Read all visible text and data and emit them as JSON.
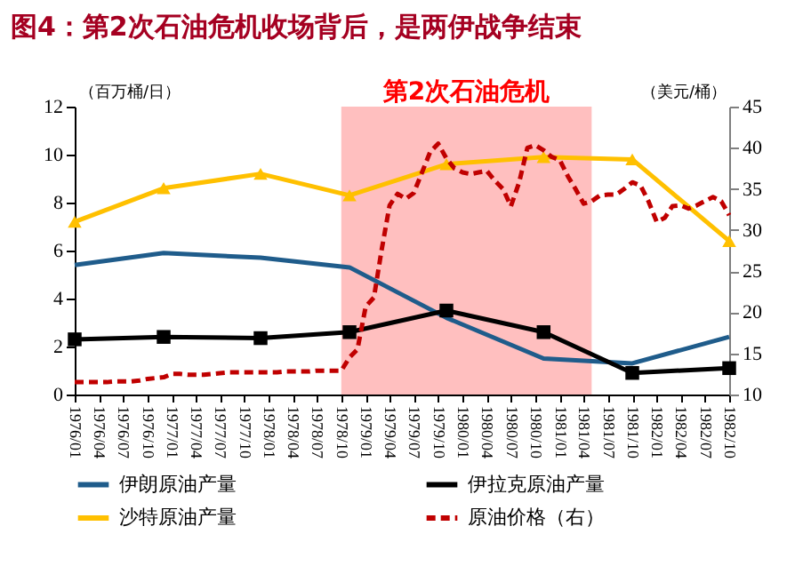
{
  "chart_data": {
    "type": "line",
    "title": "图4：第2次石油危机收场背后，是两伊战争结束",
    "ylabel": "（百万桶/日）",
    "y2label": "（美元/桶）",
    "xlim": [
      "1976-01",
      "1982-10"
    ],
    "xticks": [
      {
        "value": "1976-01",
        "label": "1976/01"
      },
      {
        "value": "1976-04",
        "label": "1976/04"
      },
      {
        "value": "1976-07",
        "label": "1976/07"
      },
      {
        "value": "1976-10",
        "label": "1976/10"
      },
      {
        "value": "1977-01",
        "label": "1977/01"
      },
      {
        "value": "1977-04",
        "label": "1977/04"
      },
      {
        "value": "1977-07",
        "label": "1977/07"
      },
      {
        "value": "1977-10",
        "label": "1977/10"
      },
      {
        "value": "1978-01",
        "label": "1978/01"
      },
      {
        "value": "1978-04",
        "label": "1978/04"
      },
      {
        "value": "1978-07",
        "label": "1978/07"
      },
      {
        "value": "1978-10",
        "label": "1978/10"
      },
      {
        "value": "1979-01",
        "label": "1979/01"
      },
      {
        "value": "1979-04",
        "label": "1979/04"
      },
      {
        "value": "1979-07",
        "label": "1979/07"
      },
      {
        "value": "1979-10",
        "label": "1979/10"
      },
      {
        "value": "1980-01",
        "label": "1980/01"
      },
      {
        "value": "1980-04",
        "label": "1980/04"
      },
      {
        "value": "1980-07",
        "label": "1980/07"
      },
      {
        "value": "1980-10",
        "label": "1980/10"
      },
      {
        "value": "1981-01",
        "label": "1981/01"
      },
      {
        "value": "1981-04",
        "label": "1981/04"
      },
      {
        "value": "1981-07",
        "label": "1981/07"
      },
      {
        "value": "1981-10",
        "label": "1981/10"
      },
      {
        "value": "1982-01",
        "label": "1982/01"
      },
      {
        "value": "1982-04",
        "label": "1982/04"
      },
      {
        "value": "1982-07",
        "label": "1982/07"
      },
      {
        "value": "1982-10",
        "label": "1982/10"
      }
    ],
    "ylim": [
      0,
      12
    ],
    "yticks": [
      0,
      2,
      4,
      6,
      8,
      10,
      12
    ],
    "y2lim": [
      10,
      45
    ],
    "y2ticks": [
      10,
      15,
      20,
      25,
      30,
      35,
      40,
      45
    ],
    "grid": false,
    "legend": "bottom",
    "bands": [
      {
        "axis": "x",
        "from": "1978-10",
        "to": "1981-05",
        "label": "第2次石油危机",
        "color": "#ffbfbf"
      }
    ],
    "series": [
      {
        "name": "伊朗原油产量",
        "color": "#1f5c8b",
        "type": "line",
        "marker": "none",
        "line_style": "solid",
        "x": [
          "1976-01",
          "1976-12",
          "1977-12",
          "1978-11",
          "1979-11",
          "1980-11",
          "1981-10",
          "1982-10"
        ],
        "values": [
          5.4,
          5.9,
          5.7,
          5.3,
          3.2,
          1.5,
          1.3,
          2.4
        ]
      },
      {
        "name": "伊拉克原油产量",
        "color": "#000000",
        "type": "line",
        "marker": "square",
        "line_style": "solid",
        "x": [
          "1976-01",
          "1976-12",
          "1977-12",
          "1978-11",
          "1979-11",
          "1980-11",
          "1981-10",
          "1982-10"
        ],
        "values": [
          2.3,
          2.4,
          2.35,
          2.6,
          3.5,
          2.6,
          0.9,
          1.1
        ]
      },
      {
        "name": "沙特原油产量",
        "color": "#ffc000",
        "type": "line",
        "marker": "triangle",
        "line_style": "solid",
        "x": [
          "1976-01",
          "1976-12",
          "1977-12",
          "1978-11",
          "1979-11",
          "1980-11",
          "1981-10",
          "1982-10"
        ],
        "values": [
          7.2,
          8.6,
          9.2,
          8.3,
          9.6,
          9.9,
          9.8,
          6.4
        ]
      },
      {
        "name": "原油价格（右）",
        "color": "#c00000",
        "type": "line",
        "marker": "none",
        "line_style": "dashed",
        "axis": "y2",
        "x": [
          "1976-01",
          "1976-02",
          "1976-03",
          "1976-04",
          "1976-05",
          "1976-06",
          "1976-07",
          "1976-08",
          "1976-09",
          "1976-10",
          "1976-11",
          "1976-12",
          "1977-01",
          "1977-02",
          "1977-03",
          "1977-04",
          "1977-05",
          "1977-06",
          "1977-07",
          "1977-08",
          "1977-09",
          "1977-10",
          "1977-11",
          "1977-12",
          "1978-01",
          "1978-02",
          "1978-03",
          "1978-04",
          "1978-05",
          "1978-06",
          "1978-07",
          "1978-08",
          "1978-09",
          "1978-10",
          "1978-11",
          "1978-12",
          "1979-01",
          "1979-02",
          "1979-03",
          "1979-04",
          "1979-05",
          "1979-06",
          "1979-07",
          "1979-08",
          "1979-09",
          "1979-10",
          "1979-11",
          "1979-12",
          "1980-01",
          "1980-02",
          "1980-03",
          "1980-04",
          "1980-05",
          "1980-06",
          "1980-07",
          "1980-08",
          "1980-09",
          "1980-10",
          "1980-11",
          "1980-12",
          "1981-01",
          "1981-02",
          "1981-03",
          "1981-04",
          "1981-05",
          "1981-06",
          "1981-07",
          "1981-08",
          "1981-09",
          "1981-10",
          "1981-11",
          "1981-12",
          "1982-01",
          "1982-02",
          "1982-03",
          "1982-04",
          "1982-05",
          "1982-06",
          "1982-07",
          "1982-08",
          "1982-09",
          "1982-10"
        ],
        "values": [
          11.5,
          11.5,
          11.5,
          11.5,
          11.5,
          11.6,
          11.6,
          11.6,
          11.7,
          11.9,
          12.0,
          12.1,
          12.5,
          12.5,
          12.4,
          12.4,
          12.4,
          12.5,
          12.6,
          12.7,
          12.7,
          12.7,
          12.7,
          12.7,
          12.7,
          12.7,
          12.8,
          12.8,
          12.8,
          12.8,
          12.9,
          12.9,
          12.9,
          12.9,
          14.5,
          15.5,
          20.7,
          21.8,
          27.4,
          33.0,
          34.4,
          33.8,
          34.5,
          37.0,
          39.5,
          40.5,
          38.7,
          37.5,
          37.0,
          36.8,
          37.0,
          37.2,
          36.0,
          35.0,
          32.9,
          35.8,
          40.0,
          40.3,
          39.7,
          38.9,
          38.5,
          36.5,
          35.0,
          33.2,
          33.5,
          34.2,
          34.3,
          34.3,
          35.0,
          35.8,
          35.4,
          33.5,
          31.0,
          31.5,
          32.9,
          33.0,
          32.6,
          33.0,
          33.5,
          34.0,
          33.5,
          31.8
        ]
      }
    ]
  }
}
